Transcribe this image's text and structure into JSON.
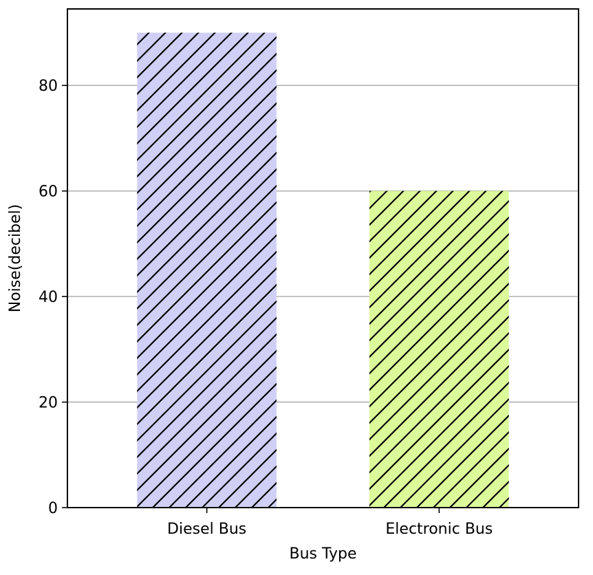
{
  "chart_data": {
    "type": "bar",
    "categories": [
      "Diesel Bus",
      "Electronic Bus"
    ],
    "values": [
      90,
      60
    ],
    "bar_colors": [
      "#d0d0f6",
      "#dcfa9a"
    ],
    "hatch": "diagonal",
    "xlabel": "Bus Type",
    "ylabel": "Noise(decibel)",
    "ylim": [
      0,
      94.5
    ],
    "yticks": [
      0,
      20,
      40,
      60,
      80
    ],
    "grid": "y",
    "legend": "none"
  }
}
